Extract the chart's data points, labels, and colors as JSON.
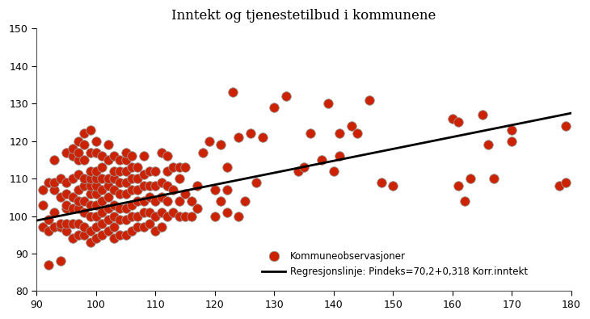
{
  "title": "Inntekt og tjenestetilbud i kommunene",
  "xlim": [
    90,
    180
  ],
  "ylim": [
    80,
    150
  ],
  "xticks": [
    90,
    100,
    110,
    120,
    130,
    140,
    150,
    160,
    170,
    180
  ],
  "yticks": [
    80,
    90,
    100,
    110,
    120,
    130,
    140,
    150
  ],
  "regression_intercept": 70.2,
  "regression_slope": 0.318,
  "dot_color": "#cc2200",
  "dot_edgecolor": "#999999",
  "dot_size": 70,
  "line_color": "#000000",
  "legend_dot_label": "Kommuneobservasjoner",
  "legend_line_label": "Regresjonslinje: Pindeks=70,2+0,318 Korr.inntekt",
  "scatter_x": [
    91,
    91,
    91,
    92,
    92,
    92,
    92,
    93,
    93,
    93,
    93,
    93,
    94,
    94,
    94,
    94,
    94,
    95,
    95,
    95,
    95,
    95,
    95,
    95,
    96,
    96,
    96,
    96,
    96,
    96,
    96,
    97,
    97,
    97,
    97,
    97,
    97,
    97,
    97,
    97,
    98,
    98,
    98,
    98,
    98,
    98,
    98,
    98,
    98,
    99,
    99,
    99,
    99,
    99,
    99,
    99,
    99,
    99,
    99,
    100,
    100,
    100,
    100,
    100,
    100,
    100,
    100,
    100,
    100,
    101,
    101,
    101,
    101,
    101,
    101,
    101,
    101,
    102,
    102,
    102,
    102,
    102,
    102,
    102,
    102,
    103,
    103,
    103,
    103,
    103,
    103,
    103,
    103,
    104,
    104,
    104,
    104,
    104,
    104,
    104,
    105,
    105,
    105,
    105,
    105,
    105,
    105,
    105,
    106,
    106,
    106,
    106,
    106,
    106,
    106,
    107,
    107,
    107,
    107,
    107,
    107,
    108,
    108,
    108,
    108,
    108,
    108,
    109,
    109,
    109,
    109,
    109,
    110,
    110,
    110,
    110,
    110,
    111,
    111,
    111,
    111,
    111,
    112,
    112,
    112,
    112,
    112,
    113,
    113,
    113,
    114,
    114,
    114,
    114,
    115,
    115,
    115,
    116,
    116,
    117,
    117,
    118,
    119,
    120,
    120,
    121,
    121,
    122,
    122,
    122,
    123,
    124,
    124,
    125,
    126,
    127,
    128,
    130,
    132,
    134,
    135,
    136,
    138,
    139,
    140,
    141,
    141,
    143,
    144,
    146,
    148,
    150,
    160,
    161,
    161,
    162,
    163,
    165,
    166,
    167,
    170,
    170,
    178,
    179,
    179
  ],
  "scatter_y": [
    97,
    103,
    107,
    96,
    99,
    109,
    87,
    97,
    101,
    107,
    109,
    115,
    97,
    98,
    105,
    110,
    88,
    96,
    98,
    102,
    103,
    106,
    109,
    117,
    94,
    98,
    102,
    105,
    110,
    116,
    118,
    95,
    98,
    102,
    104,
    107,
    111,
    115,
    117,
    120,
    95,
    97,
    101,
    104,
    108,
    110,
    115,
    119,
    122,
    93,
    96,
    100,
    103,
    106,
    108,
    110,
    112,
    117,
    123,
    94,
    97,
    100,
    103,
    106,
    108,
    110,
    112,
    117,
    120,
    95,
    98,
    101,
    104,
    107,
    110,
    113,
    116,
    96,
    99,
    102,
    105,
    108,
    110,
    115,
    119,
    94,
    97,
    100,
    103,
    107,
    110,
    112,
    116,
    95,
    99,
    102,
    106,
    109,
    112,
    115,
    95,
    99,
    102,
    106,
    109,
    112,
    115,
    117,
    96,
    100,
    103,
    107,
    110,
    113,
    116,
    97,
    100,
    104,
    107,
    110,
    113,
    97,
    101,
    104,
    108,
    111,
    116,
    98,
    101,
    105,
    108,
    112,
    96,
    100,
    104,
    108,
    112,
    97,
    101,
    105,
    109,
    117,
    100,
    104,
    108,
    112,
    116,
    101,
    107,
    113,
    100,
    104,
    110,
    113,
    100,
    106,
    113,
    100,
    104,
    102,
    108,
    117,
    120,
    100,
    107,
    104,
    119,
    101,
    107,
    113,
    133,
    100,
    121,
    104,
    122,
    109,
    121,
    129,
    132,
    112,
    113,
    122,
    115,
    130,
    112,
    116,
    122,
    124,
    122,
    131,
    109,
    108,
    126,
    108,
    125,
    104,
    110,
    127,
    119,
    110,
    123,
    120,
    108,
    109,
    124
  ]
}
